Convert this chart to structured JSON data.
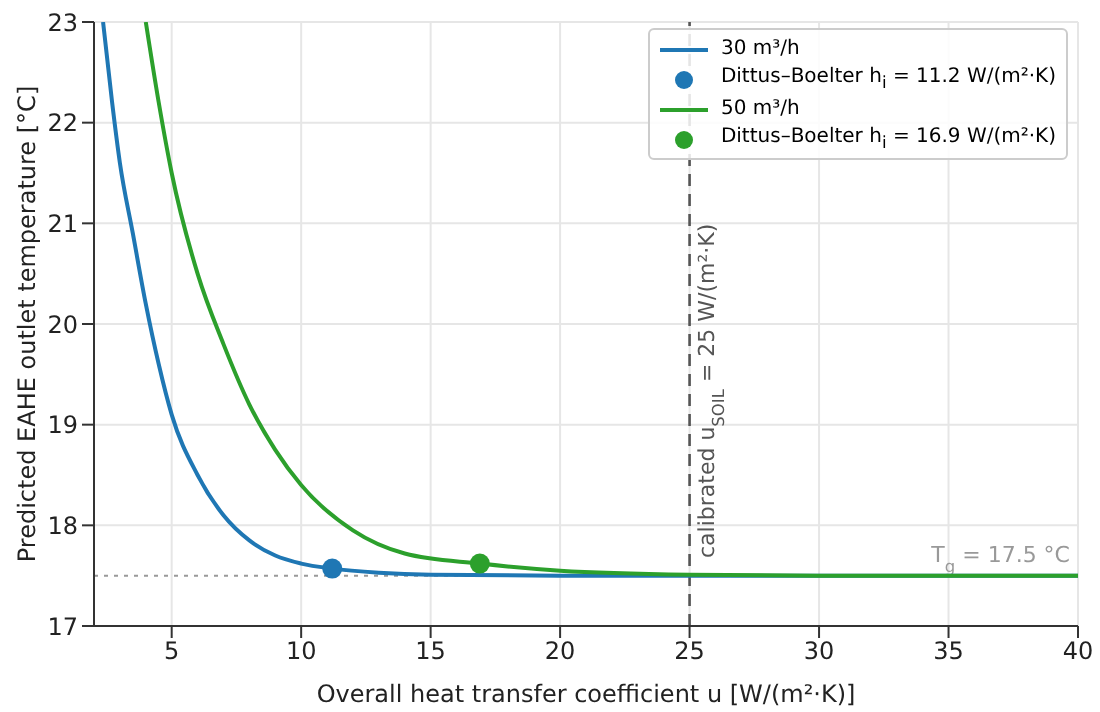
{
  "chart_data": {
    "type": "line",
    "xlabel": "Overall heat transfer coefficient u [W/(m²·K)]",
    "ylabel": "Predicted EAHE outlet temperature [°C]",
    "xlim": [
      2,
      40
    ],
    "xticks": [
      5,
      10,
      15,
      20,
      25,
      30,
      35,
      40
    ],
    "ylim": [
      17,
      23
    ],
    "yticks": [
      17,
      18,
      19,
      20,
      21,
      22,
      23
    ],
    "grid": true,
    "legend": "top right",
    "series": [
      {
        "name": "30 m³/h",
        "color": "#1f77b4",
        "x": [
          2.35,
          2.7,
          3,
          3.5,
          4,
          4.5,
          5,
          6,
          7,
          8,
          9,
          10,
          11.2,
          13,
          15,
          20,
          25,
          30,
          40
        ],
        "values": [
          23,
          22.2,
          21.6,
          20.9,
          20.2,
          19.6,
          19.1,
          18.5,
          18.1,
          17.85,
          17.7,
          17.62,
          17.57,
          17.53,
          17.51,
          17.5,
          17.5,
          17.5,
          17.5
        ]
      },
      {
        "type": "scatter",
        "name": "Dittus–Boelter h$_{i}$ = 11.2 W/(m²·K)",
        "color": "#1f77b4",
        "x": [
          11.2
        ],
        "values": [
          17.57
        ]
      },
      {
        "name": "50 m³/h",
        "color": "#2ca02c",
        "x": [
          4,
          4.5,
          5,
          6,
          7,
          8,
          9,
          10,
          12,
          14,
          16.9,
          20,
          25,
          30,
          40
        ],
        "values": [
          23,
          22.2,
          21.5,
          20.5,
          19.8,
          19.2,
          18.75,
          18.4,
          17.95,
          17.72,
          17.62,
          17.55,
          17.51,
          17.5,
          17.5
        ]
      },
      {
        "type": "scatter",
        "name": "Dittus–Boelter h$_{i}$ = 16.9 W/(m²·K)",
        "color": "#2ca02c",
        "x": [
          16.9
        ],
        "values": [
          17.62
        ]
      }
    ],
    "ref_lines": [
      {
        "axis": "x",
        "value": 25,
        "label": "calibrated u$_{SOIL}$ = 25 W/(m²·K)",
        "color": "#555555",
        "line_style": "dashed"
      },
      {
        "axis": "y",
        "value": 17.5,
        "label": "T$_{g}$ = 17.5 °C",
        "color": "#999999",
        "line_style": "dotted"
      }
    ]
  }
}
